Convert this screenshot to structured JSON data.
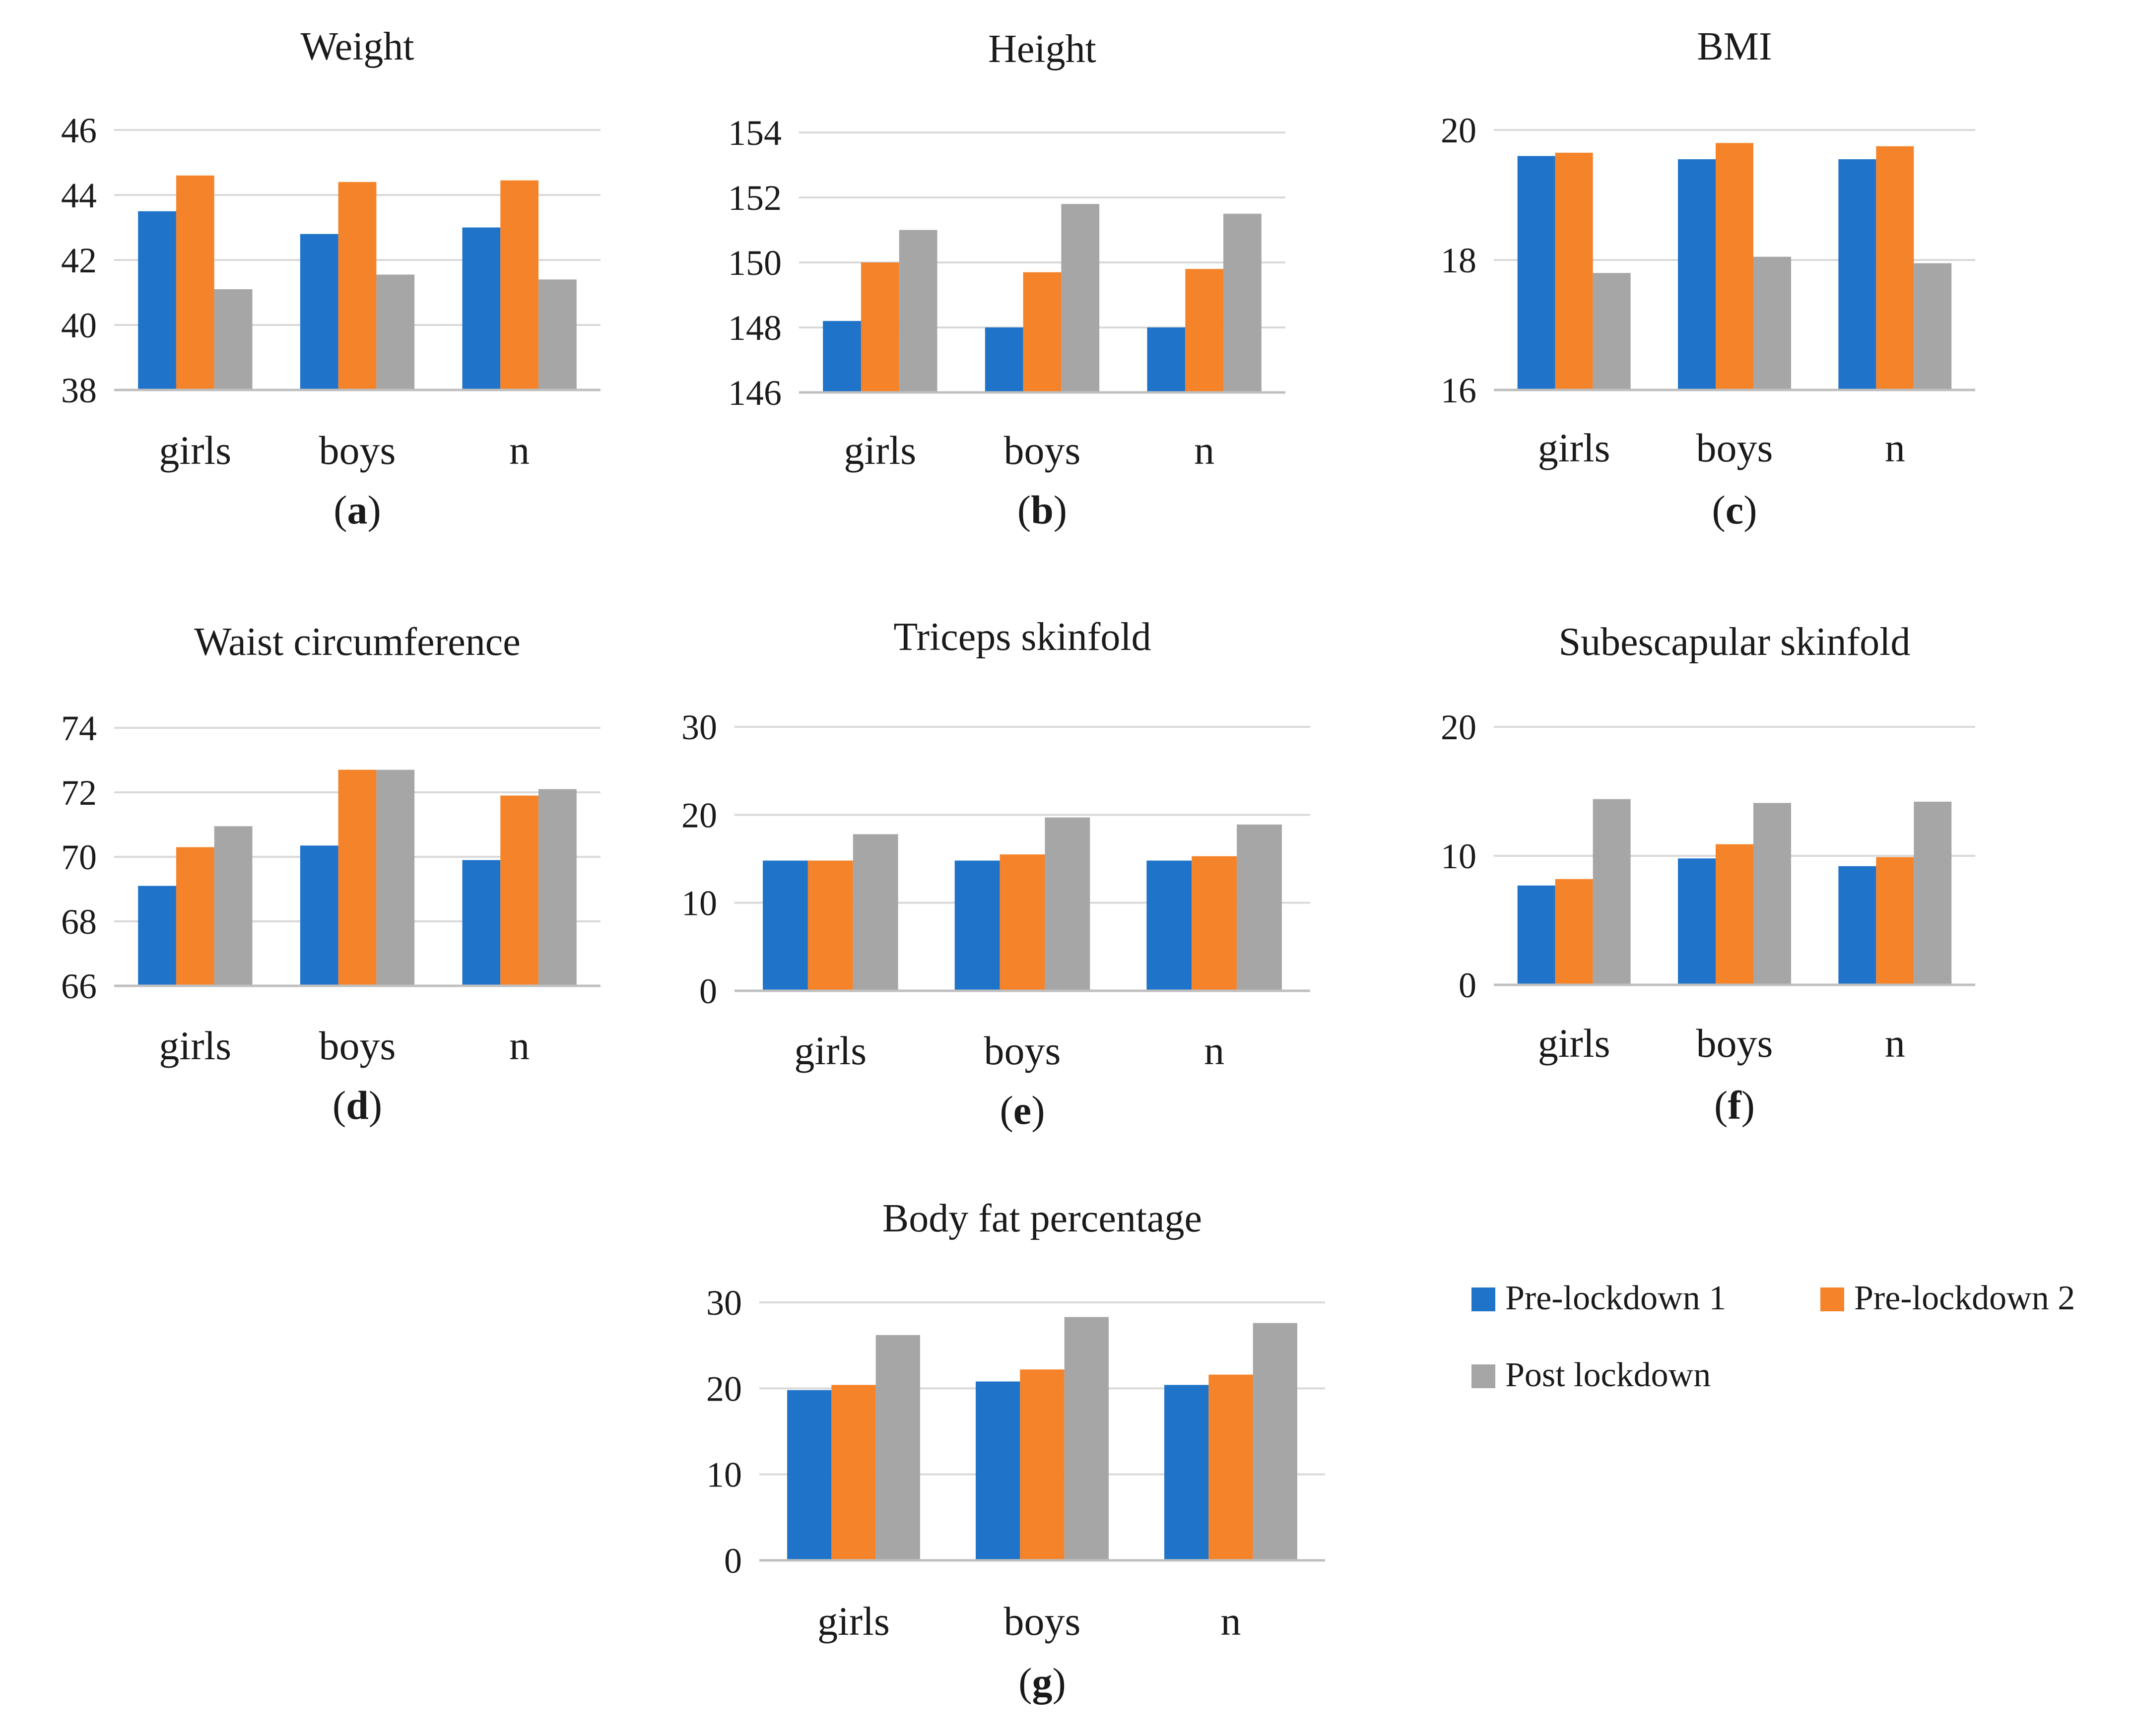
{
  "colors": {
    "pre_lockdown_1": "#1f74c9",
    "pre_lockdown_2": "#f5832a",
    "post_lockdown": "#a6a6a6"
  },
  "legend": [
    {
      "label": "Pre-lockdown 1",
      "color": "#1f74c9"
    },
    {
      "label": "Pre-lockdown 2",
      "color": "#f5832a"
    },
    {
      "label": "Post lockdown",
      "color": "#a6a6a6"
    }
  ],
  "chart_data": [
    {
      "id": "a",
      "type": "bar",
      "title": "Weight",
      "panel": "a",
      "categories": [
        "girls",
        "boys",
        "n"
      ],
      "ylim": [
        38,
        46
      ],
      "yticks": [
        38,
        40,
        42,
        44,
        46
      ],
      "series": [
        {
          "name": "Pre-lockdown 1",
          "values": [
            43.5,
            42.8,
            43.0
          ]
        },
        {
          "name": "Pre-lockdown 2",
          "values": [
            44.6,
            44.4,
            44.45
          ]
        },
        {
          "name": "Post lockdown",
          "values": [
            41.1,
            41.55,
            41.4
          ]
        }
      ]
    },
    {
      "id": "b",
      "type": "bar",
      "title": "Height",
      "panel": "b",
      "categories": [
        "girls",
        "boys",
        "n"
      ],
      "ylim": [
        146,
        154
      ],
      "yticks": [
        146,
        148,
        150,
        152,
        154
      ],
      "series": [
        {
          "name": "Pre-lockdown 1",
          "values": [
            148.2,
            148.0,
            148.0
          ]
        },
        {
          "name": "Pre-lockdown 2",
          "values": [
            150.0,
            149.7,
            149.8
          ]
        },
        {
          "name": "Post lockdown",
          "values": [
            151.0,
            151.8,
            151.5
          ]
        }
      ]
    },
    {
      "id": "c",
      "type": "bar",
      "title": "BMI",
      "panel": "c",
      "categories": [
        "girls",
        "boys",
        "n"
      ],
      "ylim": [
        16,
        20
      ],
      "yticks": [
        16,
        18,
        20
      ],
      "series": [
        {
          "name": "Pre-lockdown 1",
          "values": [
            19.6,
            19.55,
            19.55
          ]
        },
        {
          "name": "Pre-lockdown 2",
          "values": [
            19.65,
            19.8,
            19.75
          ]
        },
        {
          "name": "Post lockdown",
          "values": [
            17.8,
            18.05,
            17.95
          ]
        }
      ]
    },
    {
      "id": "d",
      "type": "bar",
      "title": "Waist circumference",
      "panel": "d",
      "categories": [
        "girls",
        "boys",
        "n"
      ],
      "ylim": [
        66,
        74
      ],
      "yticks": [
        66,
        68,
        70,
        72,
        74
      ],
      "series": [
        {
          "name": "Pre-lockdown 1",
          "values": [
            69.1,
            70.35,
            69.9
          ]
        },
        {
          "name": "Pre-lockdown 2",
          "values": [
            70.3,
            72.7,
            71.9
          ]
        },
        {
          "name": "Post lockdown",
          "values": [
            70.95,
            72.7,
            72.1
          ]
        }
      ]
    },
    {
      "id": "e",
      "type": "bar",
      "title": "Triceps skinfold",
      "panel": "e",
      "categories": [
        "girls",
        "boys",
        "n"
      ],
      "ylim": [
        0,
        30
      ],
      "yticks": [
        0,
        10,
        20,
        30
      ],
      "series": [
        {
          "name": "Pre-lockdown 1",
          "values": [
            14.8,
            14.8,
            14.8
          ]
        },
        {
          "name": "Pre-lockdown 2",
          "values": [
            14.8,
            15.5,
            15.3
          ]
        },
        {
          "name": "Post lockdown",
          "values": [
            17.8,
            19.7,
            18.9
          ]
        }
      ]
    },
    {
      "id": "f",
      "type": "bar",
      "title": "Subescapular skinfold",
      "panel": "f",
      "categories": [
        "girls",
        "boys",
        "n"
      ],
      "ylim": [
        0,
        20
      ],
      "yticks": [
        0,
        10,
        20
      ],
      "series": [
        {
          "name": "Pre-lockdown 1",
          "values": [
            7.7,
            9.8,
            9.2
          ]
        },
        {
          "name": "Pre-lockdown 2",
          "values": [
            8.2,
            10.9,
            9.9
          ]
        },
        {
          "name": "Post lockdown",
          "values": [
            14.4,
            14.1,
            14.2
          ]
        }
      ]
    },
    {
      "id": "g",
      "type": "bar",
      "title": "Body fat percentage",
      "panel": "g",
      "categories": [
        "girls",
        "boys",
        "n"
      ],
      "ylim": [
        0,
        30
      ],
      "yticks": [
        0,
        10,
        20,
        30
      ],
      "series": [
        {
          "name": "Pre-lockdown 1",
          "values": [
            19.8,
            20.8,
            20.4
          ]
        },
        {
          "name": "Pre-lockdown 2",
          "values": [
            20.4,
            22.2,
            21.6
          ]
        },
        {
          "name": "Post lockdown",
          "values": [
            26.2,
            28.3,
            27.6
          ]
        }
      ]
    }
  ]
}
